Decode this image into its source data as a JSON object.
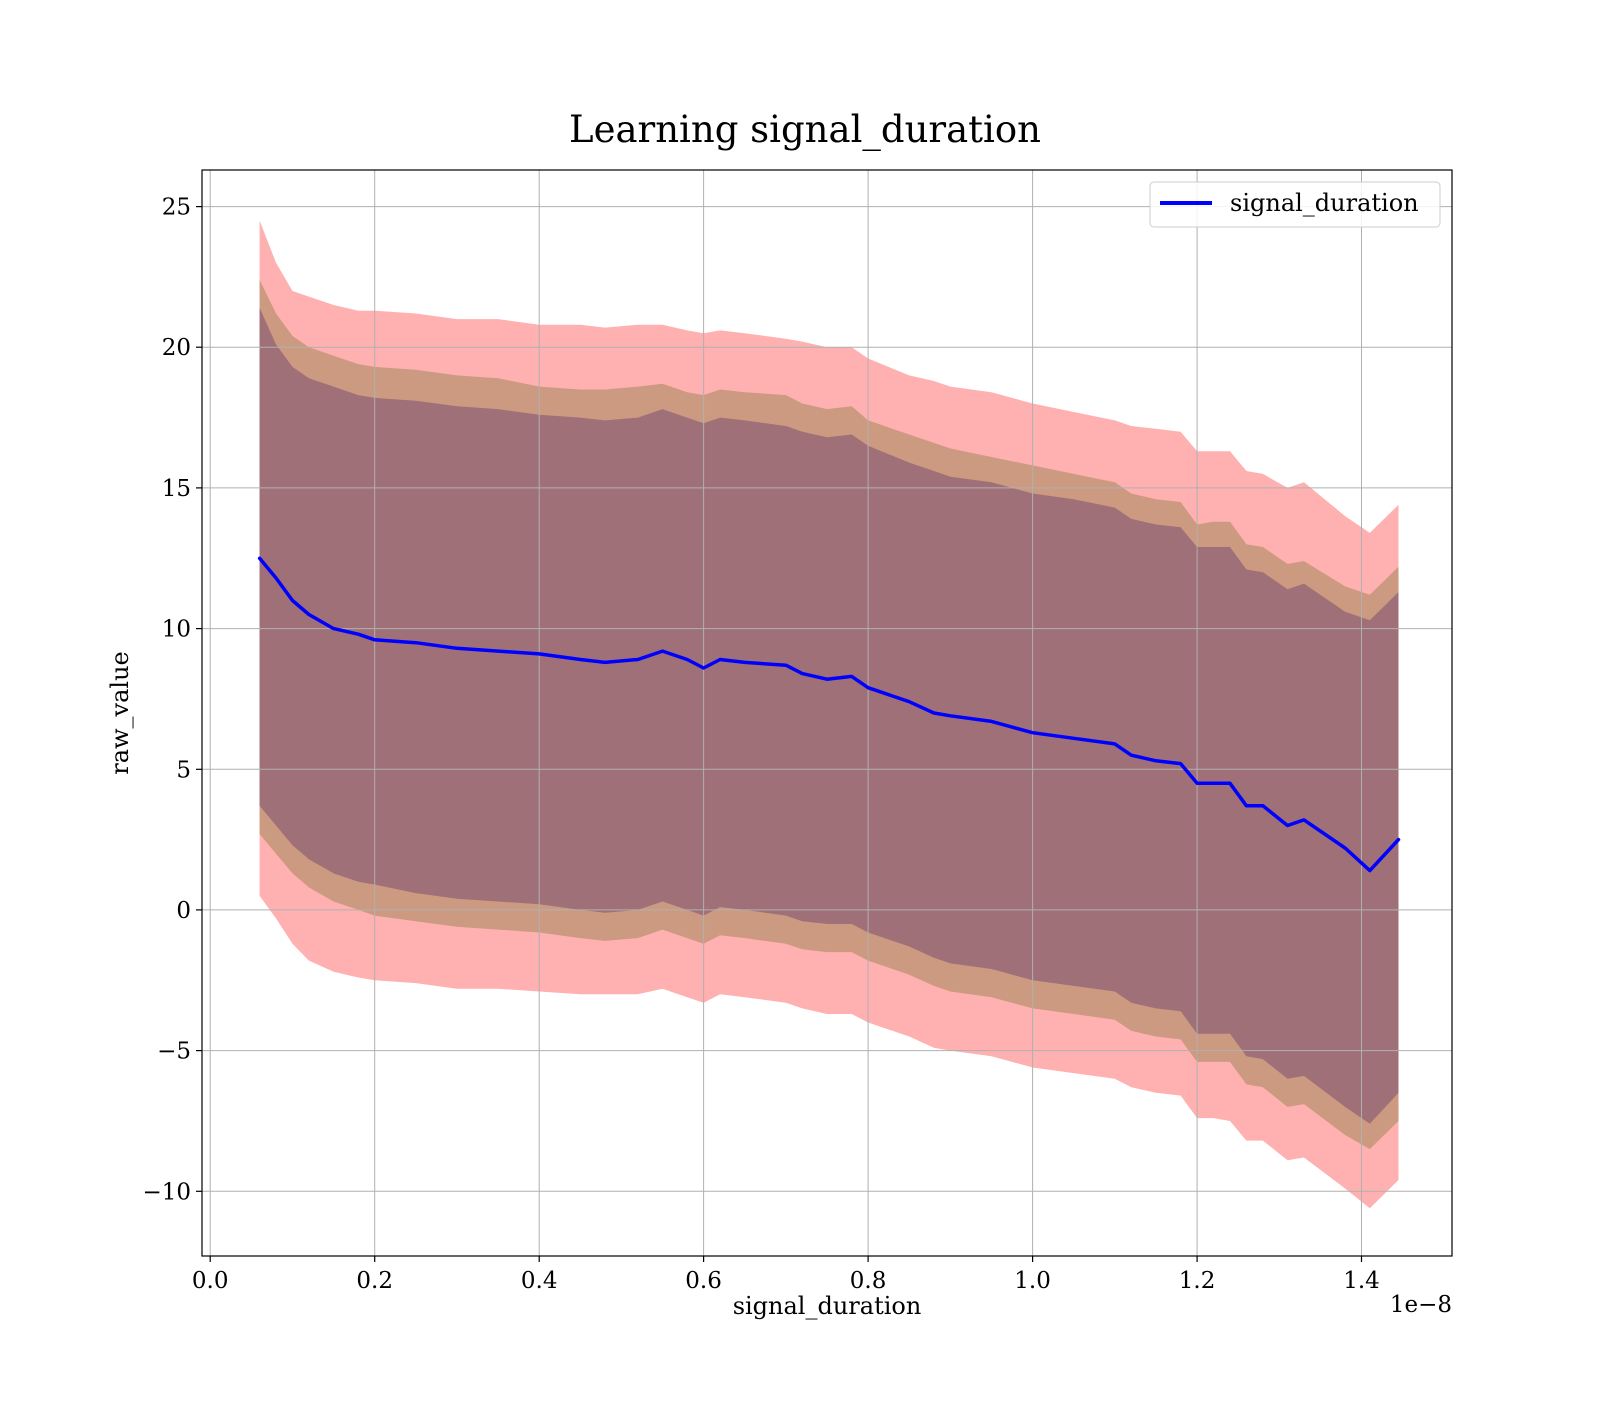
{
  "chart_data": {
    "type": "area",
    "title": "Learning signal_duration",
    "xlabel": "signal_duration",
    "ylabel": "raw_value",
    "x_offset_label": "1e−8",
    "xlim": [
      -0.01,
      1.51
    ],
    "ylim": [
      -12.3,
      26.3
    ],
    "x_ticks": [
      0.0,
      0.2,
      0.4,
      0.6,
      0.8,
      1.0,
      1.2,
      1.4
    ],
    "x_tick_labels": [
      "0.0",
      "0.2",
      "0.4",
      "0.6",
      "0.8",
      "1.0",
      "1.2",
      "1.4"
    ],
    "y_ticks": [
      -10,
      -5,
      0,
      5,
      10,
      15,
      20,
      25
    ],
    "y_tick_labels": [
      "−10",
      "−5",
      "0",
      "5",
      "10",
      "15",
      "20",
      "25"
    ],
    "grid": true,
    "legend_position": "top-right",
    "colors": {
      "line": "#0000ff",
      "band_outer": "#ffb0b0",
      "band_middle": "#cc9a80",
      "band_inner": "#a07078"
    },
    "series": [
      {
        "name": "signal_duration",
        "x": [
          0.06,
          0.08,
          0.1,
          0.12,
          0.15,
          0.18,
          0.2,
          0.25,
          0.3,
          0.35,
          0.4,
          0.45,
          0.48,
          0.52,
          0.55,
          0.58,
          0.6,
          0.62,
          0.65,
          0.7,
          0.72,
          0.75,
          0.78,
          0.8,
          0.85,
          0.88,
          0.9,
          0.95,
          1.0,
          1.05,
          1.1,
          1.12,
          1.15,
          1.18,
          1.2,
          1.22,
          1.24,
          1.26,
          1.28,
          1.31,
          1.33,
          1.38,
          1.41,
          1.445
        ],
        "y": [
          12.5,
          11.8,
          11.0,
          10.5,
          10.0,
          9.8,
          9.6,
          9.5,
          9.3,
          9.2,
          9.1,
          8.9,
          8.8,
          8.9,
          9.2,
          8.9,
          8.6,
          8.9,
          8.8,
          8.7,
          8.4,
          8.2,
          8.3,
          7.9,
          7.4,
          7.0,
          6.9,
          6.7,
          6.3,
          6.1,
          5.9,
          5.5,
          5.3,
          5.2,
          4.5,
          4.5,
          4.5,
          3.7,
          3.7,
          3.0,
          3.2,
          2.2,
          1.4,
          2.5
        ]
      }
    ],
    "bands": [
      {
        "level": "outer",
        "upper": [
          24.5,
          23.0,
          22.0,
          21.8,
          21.5,
          21.3,
          21.3,
          21.2,
          21.0,
          21.0,
          20.8,
          20.8,
          20.7,
          20.8,
          20.8,
          20.6,
          20.5,
          20.6,
          20.5,
          20.3,
          20.2,
          20.0,
          20.0,
          19.6,
          19.0,
          18.8,
          18.6,
          18.4,
          18.0,
          17.7,
          17.4,
          17.2,
          17.1,
          17.0,
          16.3,
          16.3,
          16.3,
          15.6,
          15.5,
          15.0,
          15.2,
          14.0,
          13.4,
          14.4
        ],
        "lower": [
          0.5,
          -0.3,
          -1.2,
          -1.8,
          -2.2,
          -2.4,
          -2.5,
          -2.6,
          -2.8,
          -2.8,
          -2.9,
          -3.0,
          -3.0,
          -3.0,
          -2.8,
          -3.1,
          -3.3,
          -3.0,
          -3.1,
          -3.3,
          -3.5,
          -3.7,
          -3.7,
          -4.0,
          -4.5,
          -4.9,
          -5.0,
          -5.2,
          -5.6,
          -5.8,
          -6.0,
          -6.3,
          -6.5,
          -6.6,
          -7.4,
          -7.4,
          -7.5,
          -8.2,
          -8.2,
          -8.9,
          -8.8,
          -9.9,
          -10.6,
          -9.6
        ]
      },
      {
        "level": "middle",
        "upper": [
          22.4,
          21.2,
          20.4,
          20.0,
          19.7,
          19.4,
          19.3,
          19.2,
          19.0,
          18.9,
          18.6,
          18.5,
          18.5,
          18.6,
          18.7,
          18.4,
          18.3,
          18.5,
          18.4,
          18.3,
          18.0,
          17.8,
          17.9,
          17.4,
          16.9,
          16.6,
          16.4,
          16.1,
          15.8,
          15.5,
          15.2,
          14.8,
          14.6,
          14.5,
          13.7,
          13.8,
          13.8,
          13.0,
          12.9,
          12.3,
          12.4,
          11.5,
          11.2,
          12.2
        ]
      },
      {
        "level": "inner",
        "upper": [
          21.4,
          20.1,
          19.3,
          18.9,
          18.6,
          18.3,
          18.2,
          18.1,
          17.9,
          17.8,
          17.6,
          17.5,
          17.4,
          17.5,
          17.8,
          17.5,
          17.3,
          17.5,
          17.4,
          17.2,
          17.0,
          16.8,
          16.9,
          16.5,
          15.9,
          15.6,
          15.4,
          15.2,
          14.8,
          14.6,
          14.3,
          13.9,
          13.7,
          13.6,
          12.9,
          12.9,
          12.9,
          12.1,
          12.0,
          11.4,
          11.6,
          10.6,
          10.3,
          11.3
        ],
        "lower": [
          3.7,
          3.0,
          2.3,
          1.8,
          1.3,
          1.0,
          0.9,
          0.6,
          0.4,
          0.3,
          0.2,
          0.0,
          -0.1,
          0.0,
          0.3,
          0.0,
          -0.2,
          0.1,
          0.0,
          -0.2,
          -0.4,
          -0.5,
          -0.5,
          -0.8,
          -1.3,
          -1.7,
          -1.9,
          -2.1,
          -2.5,
          -2.7,
          -2.9,
          -3.3,
          -3.5,
          -3.6,
          -4.4,
          -4.4,
          -4.4,
          -5.2,
          -5.3,
          -6.0,
          -5.9,
          -7.0,
          -7.6,
          -6.5
        ]
      },
      {
        "level": "middle",
        "lower": [
          2.7,
          2.0,
          1.3,
          0.8,
          0.3,
          0.0,
          -0.2,
          -0.4,
          -0.6,
          -0.7,
          -0.8,
          -1.0,
          -1.1,
          -1.0,
          -0.7,
          -1.0,
          -1.2,
          -0.9,
          -1.0,
          -1.2,
          -1.4,
          -1.5,
          -1.5,
          -1.8,
          -2.3,
          -2.7,
          -2.9,
          -3.1,
          -3.5,
          -3.7,
          -3.9,
          -4.3,
          -4.5,
          -4.6,
          -5.4,
          -5.4,
          -5.4,
          -6.2,
          -6.3,
          -7.0,
          -6.9,
          -8.0,
          -8.5,
          -7.5
        ]
      }
    ]
  }
}
